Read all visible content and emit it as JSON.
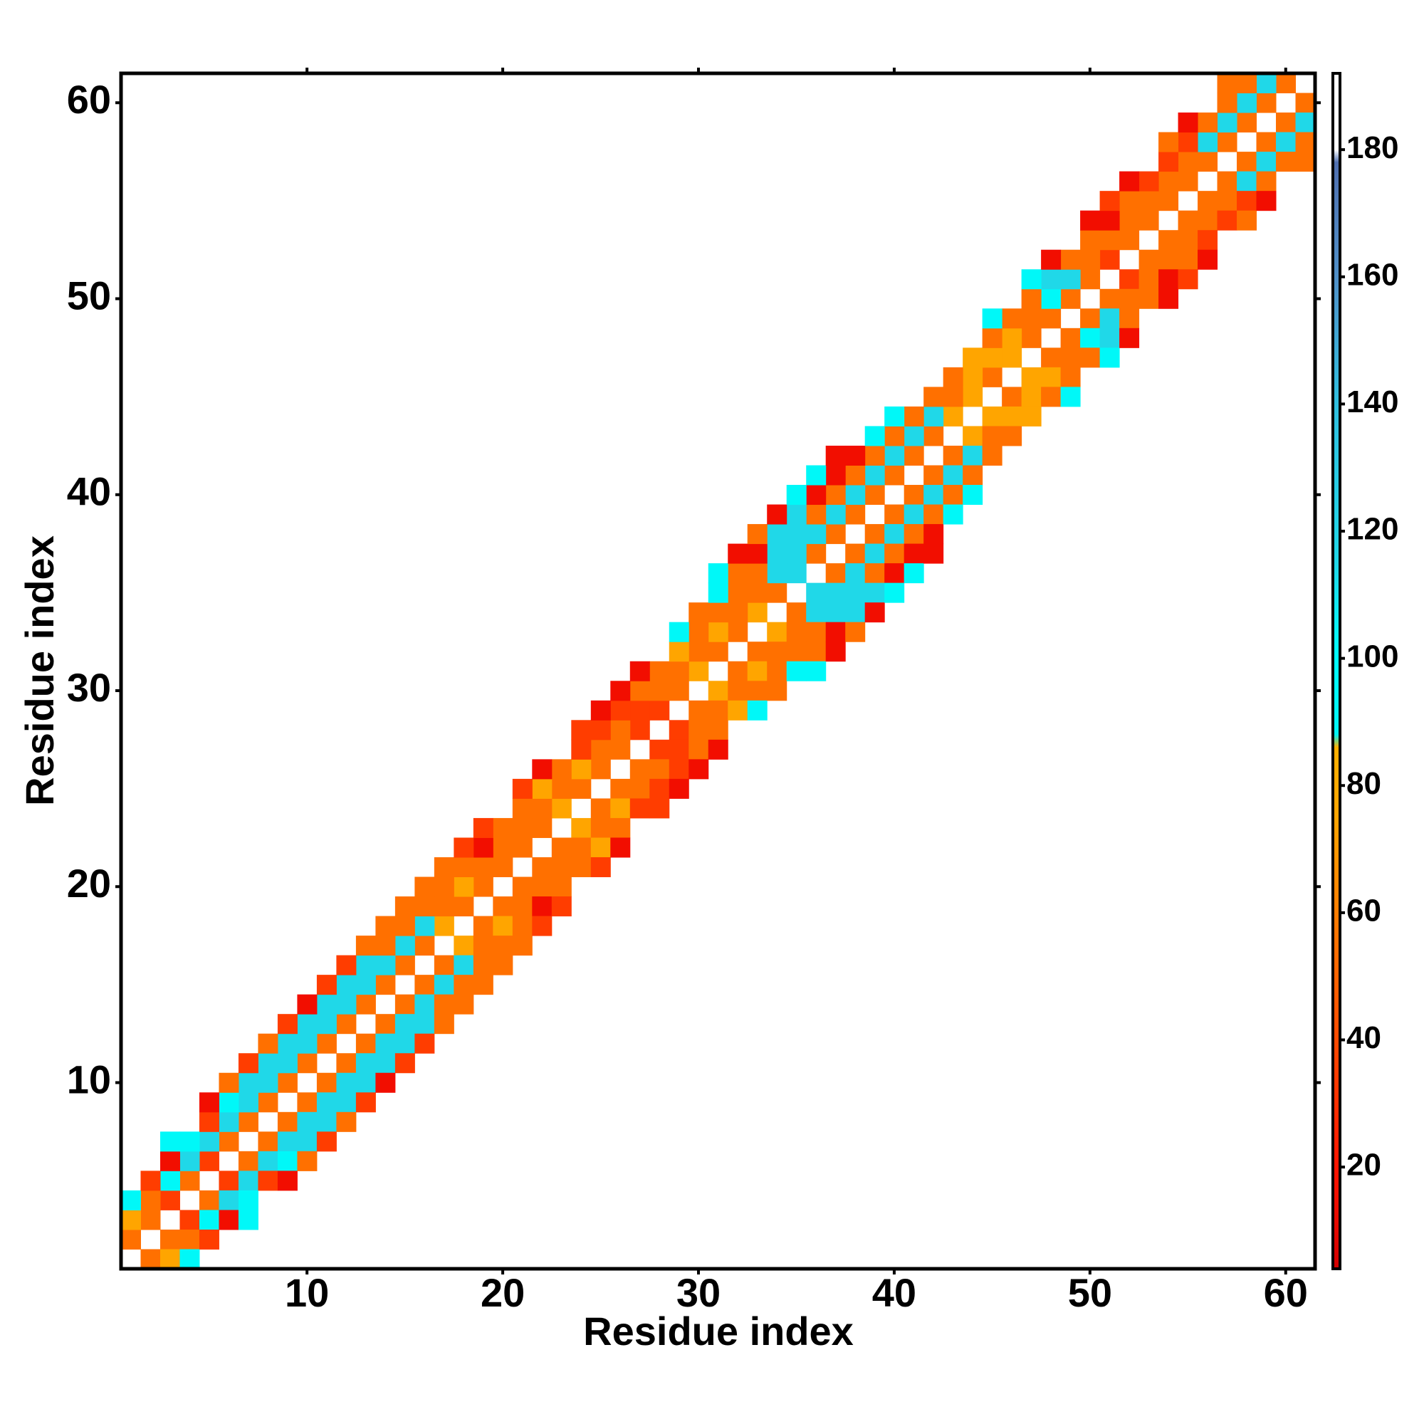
{
  "chart_data": {
    "type": "heatmap",
    "xlabel": "Residue index",
    "ylabel": "Residue index",
    "xlim": [
      0.5,
      61.5
    ],
    "ylim": [
      0.5,
      61.5
    ],
    "xticks": [
      10,
      20,
      30,
      40,
      50,
      60
    ],
    "yticks": [
      10,
      20,
      30,
      40,
      50,
      60
    ],
    "diagonals": [
      {
        "offset": 1,
        "values": [
          55,
          55,
          35,
          55,
          35,
          55,
          55,
          55,
          55,
          55,
          55,
          55,
          55,
          55,
          55,
          55,
          75,
          55,
          55,
          55,
          55,
          55,
          75,
          55,
          55,
          55,
          35,
          35,
          55,
          75,
          55,
          55,
          75,
          55,
          115,
          55,
          55,
          55,
          55,
          55,
          55,
          55,
          75,
          75,
          55,
          75,
          55,
          55,
          55,
          55,
          35,
          55,
          55,
          55,
          55,
          55,
          55,
          55,
          55,
          55
        ]
      },
      {
        "offset": 2,
        "values": [
          75,
          55,
          92,
          115,
          115,
          115,
          115,
          115,
          115,
          115,
          115,
          115,
          115,
          115,
          115,
          115,
          55,
          75,
          55,
          55,
          55,
          55,
          55,
          75,
          55,
          55,
          35,
          55,
          55,
          55,
          75,
          55,
          55,
          115,
          115,
          115,
          115,
          115,
          115,
          115,
          115,
          115,
          55,
          75,
          75,
          75,
          55,
          92,
          115,
          55,
          55,
          55,
          55,
          55,
          55,
          115,
          115,
          115,
          115
        ]
      },
      {
        "offset": 3,
        "values": [
          92,
          35,
          15,
          92,
          35,
          92,
          115,
          115,
          115,
          115,
          115,
          115,
          115,
          55,
          55,
          55,
          55,
          55,
          15,
          55,
          55,
          75,
          55,
          35,
          35,
          35,
          55,
          55,
          75,
          55,
          55,
          55,
          55,
          115,
          115,
          55,
          55,
          55,
          55,
          55,
          55,
          55,
          55,
          75,
          55,
          55,
          55,
          115,
          55,
          55,
          15,
          55,
          35,
          35,
          35,
          55,
          55,
          55
        ]
      },
      {
        "offset": 4,
        "values": [
          null,
          null,
          92,
          null,
          15,
          55,
          35,
          55,
          35,
          15,
          35,
          35,
          55,
          55,
          55,
          55,
          55,
          35,
          35,
          null,
          35,
          15,
          null,
          35,
          15,
          15,
          15,
          null,
          92,
          55,
          92,
          55,
          15,
          115,
          115,
          15,
          15,
          15,
          92,
          92,
          null,
          null,
          null,
          null,
          92,
          null,
          92,
          15,
          null,
          15,
          35,
          15,
          null,
          55,
          15,
          null,
          55
        ]
      },
      {
        "offset": 5,
        "values": [
          null,
          null,
          null,
          null,
          null,
          null,
          null,
          null,
          null,
          null,
          null,
          null,
          null,
          null,
          null,
          null,
          null,
          null,
          null,
          null,
          null,
          null,
          null,
          null,
          null,
          null,
          null,
          null,
          null,
          null,
          92,
          15,
          55,
          15,
          92,
          92,
          15,
          null,
          null,
          null,
          null,
          null,
          null,
          null,
          null,
          null,
          null,
          null,
          null,
          null,
          null,
          null,
          null,
          null,
          null,
          null
        ]
      }
    ],
    "clim": [
      4,
      192
    ],
    "cticks": [
      20,
      40,
      60,
      80,
      100,
      120,
      140,
      160,
      180
    ],
    "colorscale": [
      [
        4,
        "#d40000"
      ],
      [
        20,
        "#ff1400"
      ],
      [
        40,
        "#ff4a00"
      ],
      [
        55,
        "#ff7000"
      ],
      [
        75,
        "#ffa500"
      ],
      [
        86,
        "#ffb000"
      ],
      [
        88,
        "#00f5f5"
      ],
      [
        100,
        "#00ffff"
      ],
      [
        115,
        "#20d8e8"
      ],
      [
        140,
        "#30c0e0"
      ],
      [
        160,
        "#5090c8"
      ],
      [
        178,
        "#5070b0"
      ],
      [
        180,
        "#ffffff"
      ],
      [
        192,
        "#ffffff"
      ]
    ]
  }
}
